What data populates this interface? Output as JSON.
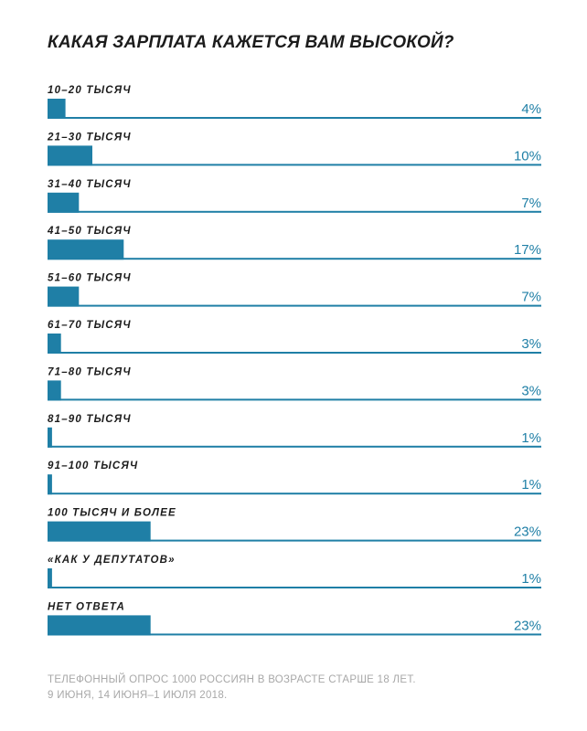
{
  "chart_data": {
    "type": "bar",
    "orientation": "horizontal",
    "title": "КАКАЯ ЗАРПЛАТА КАЖЕТСЯ ВАМ ВЫСОКОЙ?",
    "categories": [
      "10–20 ТЫСЯЧ",
      "21–30 ТЫСЯЧ",
      "31–40 ТЫСЯЧ",
      "41–50 ТЫСЯЧ",
      "51–60 ТЫСЯЧ",
      "61–70 ТЫСЯЧ",
      "71–80 ТЫСЯЧ",
      "81–90 ТЫСЯЧ",
      "91–100 ТЫСЯЧ",
      "100 ТЫСЯЧ И БОЛЕЕ",
      "«КАК У ДЕПУТАТОВ»",
      "НЕТ ОТВЕТА"
    ],
    "values": [
      4,
      10,
      7,
      17,
      7,
      3,
      3,
      1,
      1,
      23,
      1,
      23
    ],
    "value_labels": [
      "4%",
      "10%",
      "7%",
      "17%",
      "7%",
      "3%",
      "3%",
      "1%",
      "1%",
      "23%",
      "1%",
      "23%"
    ],
    "unit": "%",
    "xlim": [
      0,
      100
    ],
    "bar_color": "#1f7fa6",
    "baseline_color": "#1f7fa6",
    "grid": false,
    "legend": "none"
  },
  "footnote": {
    "line1": "ТЕЛЕФОННЫЙ ОПРОС 1000 РОССИЯН В ВОЗРАСТЕ СТАРШЕ 18 ЛЕТ.",
    "line2": "9 ИЮНЯ, 14 ИЮНЯ–1 ИЮЛЯ 2018."
  }
}
